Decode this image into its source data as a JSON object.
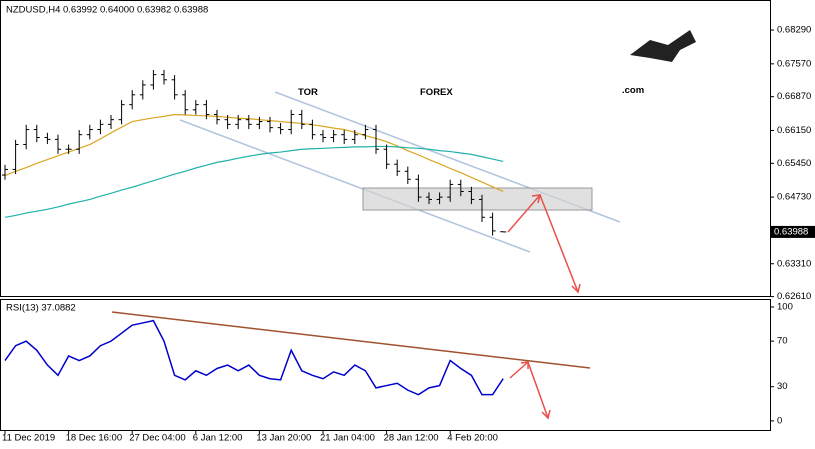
{
  "watermark": {
    "tor": "TOR",
    "forex": "FOREX",
    "com": ".com"
  },
  "chart_data": [
    {
      "type": "ohlc",
      "title": "NZDUSD,H4  0.63992 0.64000 0.63982 0.63988",
      "color": "#000000",
      "categories": [
        "11 Dec 2019",
        null,
        null,
        null,
        null,
        null,
        "18 Dec 16:00",
        null,
        null,
        null,
        null,
        null,
        "27 Dec 04:00",
        null,
        null,
        null,
        null,
        null,
        "6 Jan 12:00",
        null,
        null,
        null,
        null,
        null,
        "13 Jan 20:00",
        null,
        null,
        null,
        null,
        null,
        "21 Jan 04:00",
        null,
        null,
        null,
        null,
        null,
        "28 Jan 12:00",
        null,
        null,
        null,
        null,
        null,
        "4 Feb 20:00",
        null,
        null,
        null,
        null,
        null
      ],
      "open": [
        0.652,
        0.6532,
        0.6585,
        0.6617,
        0.66,
        0.6596,
        0.6575,
        0.6575,
        0.6606,
        0.6617,
        0.6628,
        0.6638,
        0.667,
        0.6691,
        0.6712,
        0.6734,
        0.6723,
        0.6691,
        0.6659,
        0.667,
        0.6649,
        0.6638,
        0.6628,
        0.6638,
        0.6628,
        0.6634,
        0.6621,
        0.6617,
        0.6649,
        0.6628,
        0.6606,
        0.66,
        0.6606,
        0.6596,
        0.6606,
        0.6617,
        0.6575,
        0.6543,
        0.6528,
        0.6511,
        0.6473,
        0.6468,
        0.6473,
        0.65,
        0.6485,
        0.6468,
        0.643,
        0.63992
      ],
      "high": [
        0.6542,
        0.6595,
        0.6627,
        0.6627,
        0.661,
        0.6606,
        0.6585,
        0.6616,
        0.6627,
        0.6638,
        0.6648,
        0.668,
        0.6701,
        0.6722,
        0.6744,
        0.6744,
        0.6733,
        0.6701,
        0.668,
        0.668,
        0.6659,
        0.6648,
        0.6648,
        0.6648,
        0.6644,
        0.6644,
        0.6631,
        0.6659,
        0.6659,
        0.6638,
        0.6616,
        0.6616,
        0.6616,
        0.6616,
        0.6627,
        0.6627,
        0.6585,
        0.6553,
        0.6538,
        0.6521,
        0.6483,
        0.6483,
        0.651,
        0.651,
        0.6495,
        0.6478,
        0.644,
        0.64
      ],
      "low": [
        0.651,
        0.6522,
        0.6575,
        0.659,
        0.6586,
        0.6565,
        0.6565,
        0.6565,
        0.6596,
        0.6607,
        0.6618,
        0.6628,
        0.666,
        0.6681,
        0.6702,
        0.6713,
        0.6681,
        0.6649,
        0.6649,
        0.6639,
        0.6628,
        0.6618,
        0.6618,
        0.6618,
        0.6618,
        0.6611,
        0.6607,
        0.6607,
        0.6618,
        0.6596,
        0.659,
        0.659,
        0.6586,
        0.6586,
        0.6596,
        0.6565,
        0.6533,
        0.6518,
        0.6501,
        0.6463,
        0.6458,
        0.6458,
        0.6463,
        0.6475,
        0.6458,
        0.642,
        0.6391,
        0.63982
      ],
      "close": [
        0.6532,
        0.6585,
        0.6617,
        0.66,
        0.6596,
        0.6575,
        0.6575,
        0.6606,
        0.6617,
        0.6628,
        0.6638,
        0.667,
        0.6691,
        0.6712,
        0.6734,
        0.6723,
        0.6691,
        0.6659,
        0.667,
        0.6649,
        0.6638,
        0.6628,
        0.6638,
        0.6628,
        0.6634,
        0.6621,
        0.6617,
        0.6649,
        0.6628,
        0.6606,
        0.66,
        0.6606,
        0.6596,
        0.6606,
        0.6617,
        0.6575,
        0.6543,
        0.6528,
        0.6511,
        0.6473,
        0.6468,
        0.6473,
        0.65,
        0.6485,
        0.6468,
        0.643,
        0.6401,
        0.63988
      ],
      "moving_averages": [
        {
          "color": "#daa520",
          "values": [
            0.6519,
            0.6528,
            0.6536,
            0.6545,
            0.6553,
            0.6561,
            0.6569,
            0.6577,
            0.6585,
            0.6597,
            0.661,
            0.6622,
            0.6634,
            0.6638,
            0.6642,
            0.6645,
            0.6649,
            0.6648,
            0.6647,
            0.6646,
            0.6645,
            0.6643,
            0.6641,
            0.664,
            0.6638,
            0.6636,
            0.6634,
            0.6632,
            0.663,
            0.6627,
            0.6624,
            0.662,
            0.6617,
            0.6611,
            0.6604,
            0.6598,
            0.6591,
            0.6582,
            0.6572,
            0.6563,
            0.6553,
            0.6544,
            0.6534,
            0.6525,
            0.6515,
            0.6505,
            0.6495,
            0.6485
          ]
        },
        {
          "color": "#20b2aa",
          "values": [
            0.643,
            0.6434,
            0.6439,
            0.6443,
            0.6447,
            0.6452,
            0.6458,
            0.6463,
            0.6468,
            0.6475,
            0.6481,
            0.6488,
            0.6494,
            0.6501,
            0.6508,
            0.6515,
            0.6522,
            0.6528,
            0.6535,
            0.6541,
            0.6547,
            0.6551,
            0.6556,
            0.656,
            0.6564,
            0.6567,
            0.6569,
            0.6572,
            0.6575,
            0.6576,
            0.6577,
            0.6578,
            0.6579,
            0.658,
            0.658,
            0.6581,
            0.6581,
            0.658,
            0.6578,
            0.6577,
            0.6575,
            0.6572,
            0.657,
            0.6567,
            0.6564,
            0.6559,
            0.6554,
            0.6549
          ]
        }
      ],
      "ylim": [
        0.6258,
        0.6893
      ],
      "yticks": [
        {
          "value": 0.6261,
          "label": "0.62610"
        },
        {
          "value": 0.6331,
          "label": "0.63310"
        },
        {
          "value": 0.6473,
          "label": "0.64730"
        },
        {
          "value": 0.6545,
          "label": "0.65450"
        },
        {
          "value": 0.6615,
          "label": "0.66150"
        },
        {
          "value": 0.6687,
          "label": "0.66870"
        },
        {
          "value": 0.6757,
          "label": "0.67570"
        },
        {
          "value": 0.6829,
          "label": "0.68290"
        }
      ]
    },
    {
      "type": "line",
      "title": "RSI(13) 37.0882",
      "color": "#0000cd",
      "values": [
        53,
        66,
        70,
        62,
        49,
        40,
        57,
        53,
        57,
        66,
        70,
        77,
        84,
        86,
        88,
        70,
        40,
        36,
        44,
        40,
        46,
        49,
        44,
        49,
        40,
        37,
        36,
        62,
        44,
        40,
        37,
        43,
        40,
        49,
        44,
        29,
        31,
        33,
        27,
        23,
        29,
        31,
        53,
        46,
        40,
        23,
        23,
        37.0882
      ],
      "ylim": [
        -8,
        107
      ],
      "yticks": [
        0,
        30,
        70,
        100
      ]
    }
  ]
}
